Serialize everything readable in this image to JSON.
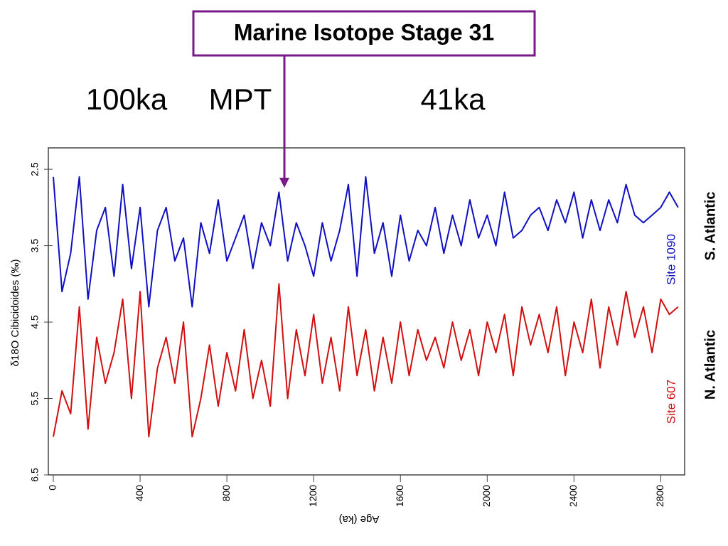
{
  "chart_data": {
    "type": "line",
    "title": "Marine Isotope Stage 31",
    "annotations": [
      "100ka",
      "MPT",
      "41ka"
    ],
    "region_labels": [
      "S. Atlantic",
      "N. Atlantic"
    ],
    "xlabel": "Age (ka)",
    "ylabel": "δ18O Cibicidoides (‰)",
    "xlim": [
      0,
      2910
    ],
    "xticks": [
      0,
      400,
      800,
      1200,
      1600,
      2000,
      2400,
      2800
    ],
    "ylim": [
      2.22,
      6.5
    ],
    "y_inverted": true,
    "yticks": [
      2.5,
      3.5,
      4.5,
      5.5,
      6.5
    ],
    "x": [
      0,
      40,
      80,
      120,
      160,
      200,
      240,
      280,
      320,
      360,
      400,
      440,
      480,
      520,
      560,
      600,
      640,
      680,
      720,
      760,
      800,
      840,
      880,
      920,
      960,
      1000,
      1040,
      1080,
      1120,
      1160,
      1200,
      1240,
      1280,
      1320,
      1360,
      1400,
      1440,
      1480,
      1520,
      1560,
      1600,
      1640,
      1680,
      1720,
      1760,
      1800,
      1840,
      1880,
      1920,
      1960,
      2000,
      2040,
      2080,
      2120,
      2160,
      2200,
      2240,
      2280,
      2320,
      2360,
      2400,
      2440,
      2480,
      2520,
      2560,
      2600,
      2640,
      2680,
      2720,
      2760,
      2800,
      2840,
      2880
    ],
    "series": [
      {
        "name": "Site 1090",
        "color": "#1010c0",
        "values": [
          2.6,
          4.1,
          3.6,
          2.6,
          4.2,
          3.3,
          3.0,
          3.9,
          2.7,
          3.8,
          3.0,
          4.3,
          3.3,
          3.0,
          3.7,
          3.4,
          4.3,
          3.2,
          3.6,
          2.9,
          3.7,
          3.4,
          3.1,
          3.8,
          3.2,
          3.5,
          2.8,
          3.7,
          3.2,
          3.5,
          3.9,
          3.2,
          3.7,
          3.3,
          2.7,
          3.9,
          2.6,
          3.6,
          3.2,
          3.9,
          3.1,
          3.7,
          3.3,
          3.5,
          3.0,
          3.6,
          3.1,
          3.5,
          2.9,
          3.4,
          3.1,
          3.5,
          2.8,
          3.4,
          3.3,
          3.1,
          3.0,
          3.3,
          2.9,
          3.2,
          2.8,
          3.4,
          2.9,
          3.3,
          2.9,
          3.2,
          2.7,
          3.1,
          3.2,
          3.1,
          3.0,
          2.8,
          3.0
        ]
      },
      {
        "name": "Site 607",
        "color": "#d01010",
        "values": [
          6.0,
          5.4,
          5.7,
          4.3,
          5.9,
          4.7,
          5.3,
          4.9,
          4.2,
          5.5,
          4.1,
          6.0,
          5.1,
          4.7,
          5.3,
          4.5,
          6.0,
          5.5,
          4.8,
          5.6,
          4.9,
          5.4,
          4.6,
          5.5,
          5.0,
          5.6,
          4.0,
          5.5,
          4.6,
          5.2,
          4.4,
          5.3,
          4.7,
          5.4,
          4.3,
          5.2,
          4.6,
          5.4,
          4.7,
          5.3,
          4.5,
          5.2,
          4.6,
          5.0,
          4.7,
          5.1,
          4.5,
          5.0,
          4.6,
          5.2,
          4.5,
          4.9,
          4.4,
          5.2,
          4.3,
          4.8,
          4.4,
          4.9,
          4.3,
          5.2,
          4.5,
          4.9,
          4.2,
          5.1,
          4.3,
          4.8,
          4.1,
          4.7,
          4.3,
          4.9,
          4.2,
          4.4,
          4.3
        ]
      }
    ]
  }
}
